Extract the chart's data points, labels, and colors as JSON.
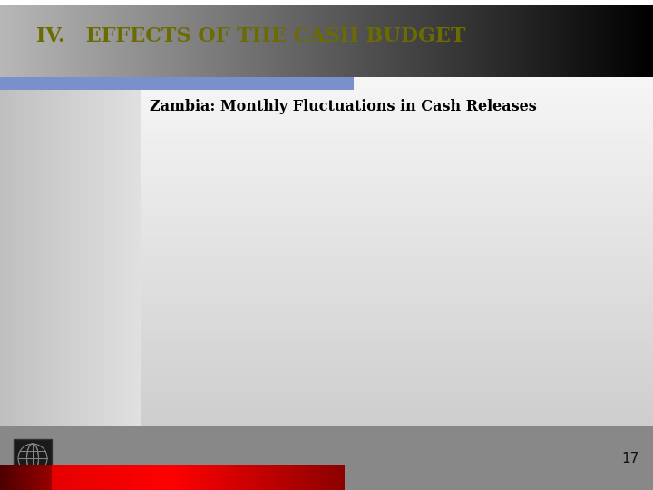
{
  "title_text": "IV.   EFFECTS OF THE CASH BUDGET",
  "subtitle_text": "Zambia: Monthly Fluctuations in Cash Releases",
  "page_number": "17",
  "title_color": "#6b6b00",
  "subtitle_color": "#000000",
  "page_num_color": "#111111",
  "blue_bar_color": "#7b8fcc",
  "left_panel_light": "#d8d8d8",
  "left_panel_dark": "#a0a0a0"
}
